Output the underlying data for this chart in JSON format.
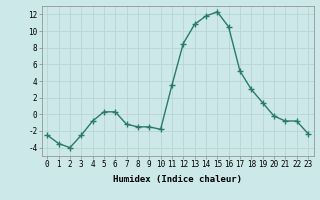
{
  "x": [
    0,
    1,
    2,
    3,
    4,
    5,
    6,
    7,
    8,
    9,
    10,
    11,
    12,
    13,
    14,
    15,
    16,
    17,
    18,
    19,
    20,
    21,
    22,
    23
  ],
  "y": [
    -2.5,
    -3.5,
    -4.0,
    -2.5,
    -0.8,
    0.3,
    0.3,
    -1.2,
    -1.5,
    -1.5,
    -1.8,
    3.5,
    8.5,
    10.8,
    11.8,
    12.3,
    10.5,
    5.2,
    3.0,
    1.4,
    -0.2,
    -0.8,
    -0.8,
    -2.3
  ],
  "line_color": "#2a7a6a",
  "marker": "+",
  "marker_size": 4.0,
  "line_width": 1.0,
  "xlabel": "Humidex (Indice chaleur)",
  "xlabel_fontsize": 6.5,
  "background_color": "#cce8e8",
  "grid_color": "#b8d4d4",
  "ylim": [
    -5,
    13
  ],
  "xlim": [
    -0.5,
    23.5
  ],
  "yticks": [
    -4,
    -2,
    0,
    2,
    4,
    6,
    8,
    10,
    12
  ],
  "xticks": [
    0,
    1,
    2,
    3,
    4,
    5,
    6,
    7,
    8,
    9,
    10,
    11,
    12,
    13,
    14,
    15,
    16,
    17,
    18,
    19,
    20,
    21,
    22,
    23
  ],
  "tick_fontsize": 5.5
}
